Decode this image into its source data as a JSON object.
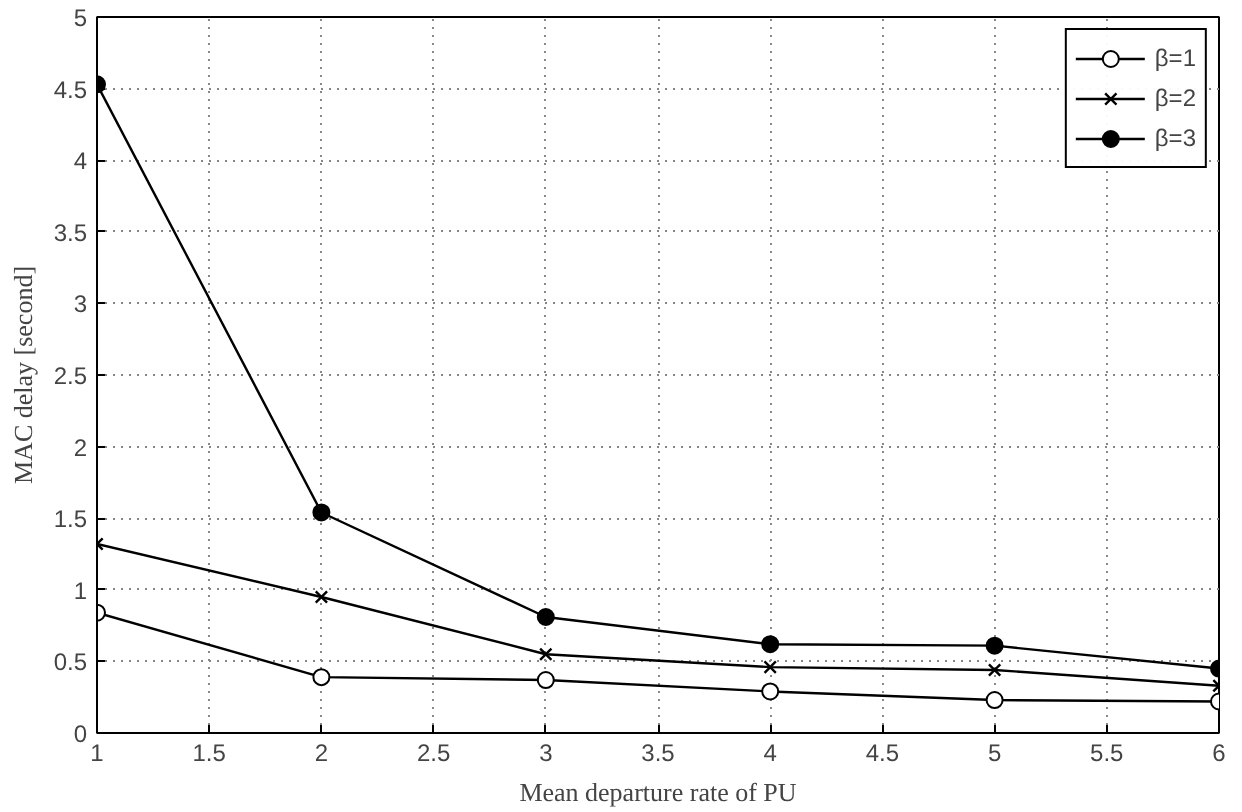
{
  "chart_data": {
    "type": "line",
    "xlabel": "Mean departure rate of PU",
    "ylabel": "MAC delay [second]",
    "x": [
      1,
      2,
      3,
      4,
      5,
      6
    ],
    "xlim": [
      1,
      6
    ],
    "xticks": [
      1,
      1.5,
      2,
      2.5,
      3,
      3.5,
      4,
      4.5,
      5,
      5.5,
      6
    ],
    "ylim": [
      0,
      5
    ],
    "yticks": [
      0,
      0.5,
      1,
      1.5,
      2,
      2.5,
      3,
      3.5,
      4,
      4.5,
      5
    ],
    "grid": true,
    "legend": "top right",
    "line_style": "solid",
    "series": [
      {
        "name": "β=1",
        "color": "#000000",
        "marker": "circle_open",
        "values": [
          0.84,
          0.39,
          0.37,
          0.29,
          0.23,
          0.22
        ]
      },
      {
        "name": "β=2",
        "color": "#000000",
        "marker": "cross",
        "values": [
          1.32,
          0.95,
          0.55,
          0.46,
          0.44,
          0.33
        ]
      },
      {
        "name": "β=3",
        "color": "#000000",
        "marker": "circle",
        "values": [
          4.53,
          1.54,
          0.81,
          0.62,
          0.61,
          0.45
        ]
      }
    ]
  }
}
